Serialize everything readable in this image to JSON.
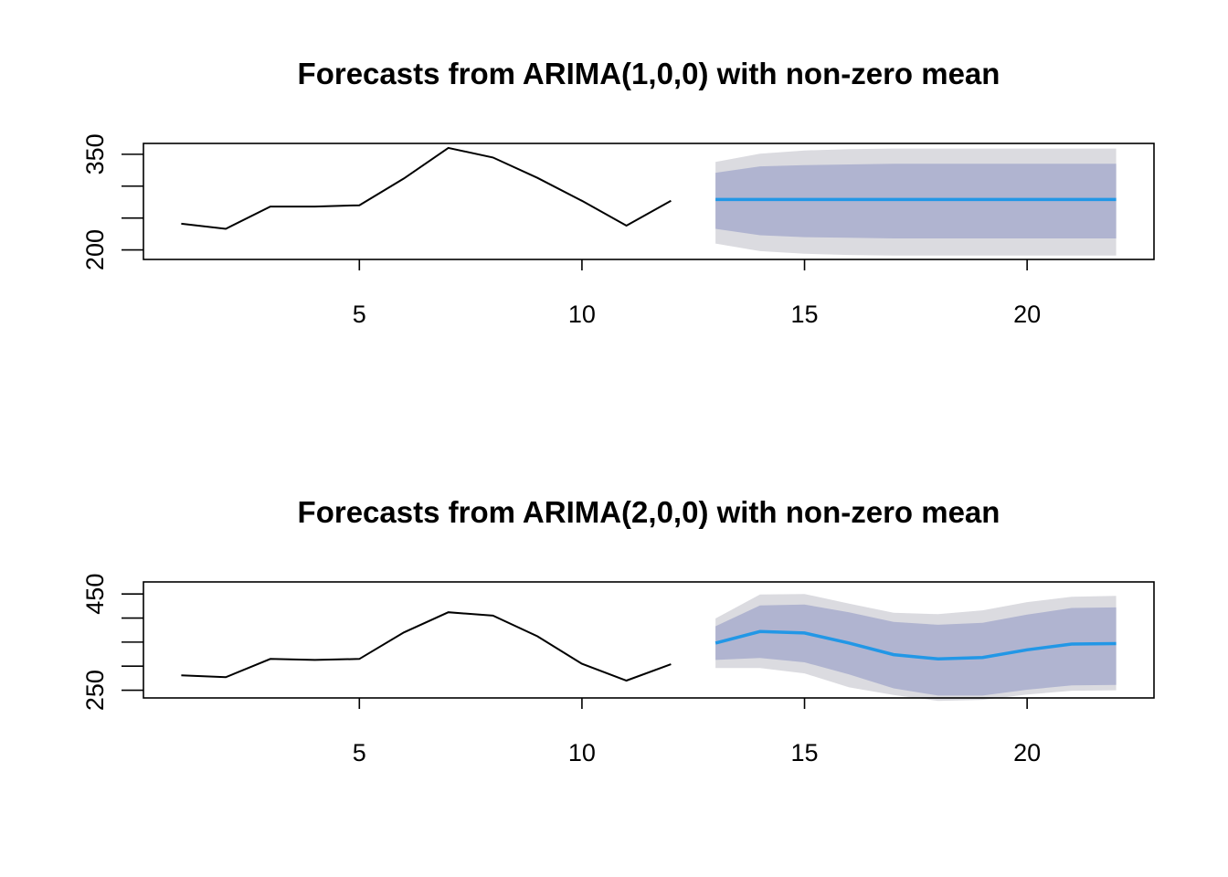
{
  "colors": {
    "observed": "#000000",
    "forecast": "#2297e6",
    "pi80": "#b0b4d0",
    "pi95": "#dbdbe0",
    "frame": "#000000"
  },
  "chart_data": [
    {
      "type": "line",
      "title": "Forecasts from ARIMA(1,0,0) with non-zero mean",
      "xlabel": "",
      "ylabel": "",
      "xlim": [
        0.15,
        22.85
      ],
      "ylim": [
        185,
        367
      ],
      "xticks": [
        5,
        10,
        15,
        20
      ],
      "xtick_labels": [
        "5",
        "10",
        "15",
        "20"
      ],
      "yticks": [
        200,
        250,
        300,
        350
      ],
      "ytick_labels": [
        "200",
        "",
        "",
        "350"
      ],
      "observed": {
        "x": [
          1,
          2,
          3,
          4,
          5,
          6,
          7,
          8,
          9,
          10,
          11,
          12
        ],
        "y": [
          241,
          233,
          268,
          268,
          270,
          312,
          360,
          345,
          313,
          277,
          238,
          277
        ]
      },
      "forecast": {
        "x": [
          13,
          14,
          15,
          16,
          17,
          18,
          19,
          20,
          21,
          22
        ],
        "mean": [
          279,
          279,
          279,
          279,
          279,
          279,
          279,
          279,
          279,
          279
        ],
        "lo80": [
          233,
          223,
          220,
          219,
          218,
          218,
          218,
          218,
          218,
          218
        ],
        "hi80": [
          321,
          331,
          333,
          334,
          335,
          335,
          335,
          335,
          335,
          335
        ],
        "lo95": [
          210,
          198,
          194,
          192,
          191,
          191,
          191,
          191,
          191,
          191
        ],
        "hi95": [
          338,
          351,
          356,
          358,
          359,
          359,
          359,
          359,
          359,
          359
        ]
      },
      "grid": false,
      "legend": "none"
    },
    {
      "type": "line",
      "title": "Forecasts from ARIMA(2,0,0) with non-zero mean",
      "xlabel": "",
      "ylabel": "",
      "xlim": [
        0.15,
        22.85
      ],
      "ylim": [
        234,
        475
      ],
      "xticks": [
        5,
        10,
        15,
        20
      ],
      "xtick_labels": [
        "5",
        "10",
        "15",
        "20"
      ],
      "yticks": [
        250,
        300,
        350,
        400,
        450
      ],
      "ytick_labels": [
        "250",
        "",
        "",
        "",
        "450"
      ],
      "observed": {
        "x": [
          1,
          2,
          3,
          4,
          5,
          6,
          7,
          8,
          9,
          10,
          11,
          12
        ],
        "y": [
          281,
          277,
          315,
          313,
          315,
          370,
          412,
          405,
          362,
          305,
          270,
          304
        ]
      },
      "forecast": {
        "x": [
          13,
          14,
          15,
          16,
          17,
          18,
          19,
          20,
          21,
          22
        ],
        "mean": [
          348,
          372,
          369,
          348,
          324,
          315,
          318,
          334,
          346,
          347
        ],
        "lo80": [
          313,
          317,
          308,
          283,
          254,
          239,
          239,
          251,
          260,
          261
        ],
        "hi80": [
          383,
          426,
          428,
          412,
          392,
          386,
          390,
          407,
          421,
          422
        ],
        "lo95": [
          296,
          296,
          285,
          256,
          240,
          228,
          230,
          241,
          249,
          250
        ],
        "hi95": [
          399,
          449,
          450,
          430,
          411,
          408,
          416,
          433,
          444,
          446
        ]
      },
      "grid": false,
      "legend": "none"
    }
  ]
}
